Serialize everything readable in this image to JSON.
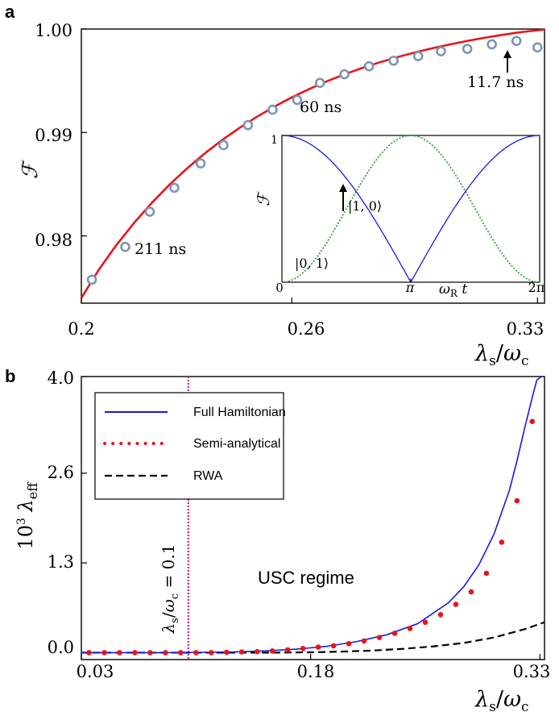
{
  "chart_data": [
    {
      "panel_label": "a",
      "type": "scatter",
      "ylabel": "ℱ",
      "xlabel_main": "λ",
      "xlabel_sub": "s",
      "xlabel_den": "ω",
      "xlabel_den_sub": "c",
      "xlim": [
        0.2,
        0.332
      ],
      "ylim": [
        0.9735,
        1.0
      ],
      "x_ticks": [
        0.2,
        0.26,
        0.33
      ],
      "x_tick_labels": [
        "0.2",
        "0.26",
        "0.33"
      ],
      "y_ticks": [
        0.98,
        0.99,
        1.0
      ],
      "y_tick_labels": [
        "0.98",
        "0.99",
        "1.00"
      ],
      "series": [
        {
          "kind": "line",
          "color": "#e8141b",
          "x": [
            0.2,
            0.205,
            0.21,
            0.215,
            0.22,
            0.225,
            0.23,
            0.235,
            0.24,
            0.245,
            0.25,
            0.255,
            0.26,
            0.265,
            0.27,
            0.275,
            0.28,
            0.285,
            0.29,
            0.295,
            0.3,
            0.305,
            0.31,
            0.315,
            0.32,
            0.325,
            0.332
          ],
          "values": [
            0.974,
            0.97675,
            0.97913,
            0.98125,
            0.98317,
            0.98491,
            0.98649,
            0.98793,
            0.98924,
            0.99043,
            0.99151,
            0.9925,
            0.9934,
            0.99421,
            0.99495,
            0.99562,
            0.99623,
            0.99678,
            0.99728,
            0.99773,
            0.99814,
            0.99851,
            0.99885,
            0.99916,
            0.99944,
            0.99969,
            0.99995
          ]
        },
        {
          "kind": "markers",
          "color": "#7b95b5",
          "x": [
            0.203,
            0.2125,
            0.2195,
            0.2265,
            0.234,
            0.2405,
            0.2475,
            0.2545,
            0.2615,
            0.268,
            0.275,
            0.282,
            0.289,
            0.296,
            0.3025,
            0.31,
            0.317,
            0.324,
            0.33
          ],
          "values": [
            0.97577,
            0.97894,
            0.98234,
            0.98465,
            0.98701,
            0.98878,
            0.99071,
            0.9922,
            0.99315,
            0.99479,
            0.99563,
            0.9964,
            0.99694,
            0.99738,
            0.99785,
            0.99808,
            0.99852,
            0.99885,
            0.99822
          ]
        }
      ],
      "annotations": [
        {
          "text": "211 ns",
          "x": 0.2125
        },
        {
          "text": "60 ns",
          "x": 0.2615
        },
        {
          "text": "11.7 ns",
          "x": 0.324
        }
      ],
      "inset": {
        "type": "line",
        "ylabel": "ℱ",
        "xlabel_main": "ω",
        "xlabel_sub": "R",
        "xlabel_tail": " t",
        "y_tick_label": "1",
        "x_tick_labels": [
          "0",
          "π",
          "2π"
        ],
        "state_a": "|1, 0⟩",
        "state_b": "|0, 1⟩",
        "series": [
          {
            "name": "|1, 0⟩",
            "color": "#1a1adc",
            "function": "|cos(ωt/2)|",
            "xlim": [
              0,
              6.2832
            ]
          },
          {
            "name": "|0, 1⟩",
            "color": "#1f9a1f",
            "function": "sin²(ωt/2)",
            "xlim": [
              0,
              6.2832
            ]
          }
        ]
      }
    },
    {
      "panel_label": "b",
      "type": "line",
      "ylabel_prefix": "10",
      "ylabel_power": "3",
      "ylabel_main": "λ",
      "ylabel_sub": "eff",
      "xlabel_main": "λ",
      "xlabel_sub": "s",
      "xlabel_den": "ω",
      "xlabel_den_sub": "c",
      "xlim": [
        0.03,
        0.333
      ],
      "ylim": [
        -0.1,
        4.0
      ],
      "x_ticks": [
        0.03,
        0.18,
        0.33
      ],
      "x_tick_labels": [
        "0.03",
        "0.18",
        "0.33"
      ],
      "y_ticks": [
        0.0,
        1.3,
        2.6,
        4.0
      ],
      "y_tick_labels": [
        "0.0",
        "1.3",
        "2.6",
        "4.0"
      ],
      "legend_placement": "top-left",
      "series": [
        {
          "name": "Full Hamiltonian",
          "color": "#1a1adc",
          "style": "solid",
          "x": [
            0.03,
            0.05,
            0.07,
            0.09,
            0.11,
            0.13,
            0.15,
            0.17,
            0.19,
            0.21,
            0.23,
            0.25,
            0.27,
            0.28,
            0.29,
            0.3,
            0.31,
            0.315,
            0.32,
            0.325,
            0.328,
            0.331
          ],
          "values": [
            0.0,
            0.0,
            0.0,
            0.0,
            0.005,
            0.01,
            0.025,
            0.05,
            0.09,
            0.16,
            0.26,
            0.42,
            0.72,
            0.95,
            1.27,
            1.72,
            2.35,
            2.78,
            3.25,
            3.7,
            3.95,
            4.0
          ]
        },
        {
          "name": "Semi-analytical",
          "color": "#e8141b",
          "style": "dotted",
          "x": [
            0.035,
            0.045,
            0.055,
            0.065,
            0.075,
            0.085,
            0.095,
            0.105,
            0.115,
            0.125,
            0.135,
            0.145,
            0.155,
            0.165,
            0.175,
            0.185,
            0.195,
            0.205,
            0.215,
            0.225,
            0.235,
            0.245,
            0.255,
            0.265,
            0.275,
            0.285,
            0.295,
            0.305,
            0.315,
            0.325
          ],
          "values": [
            0.0,
            0.0,
            0.0,
            0.0,
            0.0,
            0.0,
            0.0,
            0.0,
            0.0,
            0.005,
            0.01,
            0.015,
            0.025,
            0.04,
            0.06,
            0.08,
            0.1,
            0.13,
            0.17,
            0.22,
            0.28,
            0.35,
            0.44,
            0.55,
            0.7,
            0.88,
            1.15,
            1.6,
            2.2,
            3.35
          ]
        },
        {
          "name": "RWA",
          "color": "#000000",
          "style": "dashed",
          "x": [
            0.03,
            0.1,
            0.15,
            0.18,
            0.2,
            0.22,
            0.24,
            0.26,
            0.28,
            0.3,
            0.31,
            0.32,
            0.333
          ],
          "values": [
            0.0,
            0.0,
            0.0,
            0.005,
            0.015,
            0.03,
            0.055,
            0.09,
            0.14,
            0.22,
            0.28,
            0.34,
            0.44
          ]
        }
      ],
      "vline": {
        "x": 0.1,
        "color": "#c2338a",
        "label_main": "λ",
        "label_sub": "s",
        "label_den": "ω",
        "label_den_sub": "c",
        "label_tail": " = 0.1"
      },
      "region_label": "USC regime"
    }
  ]
}
